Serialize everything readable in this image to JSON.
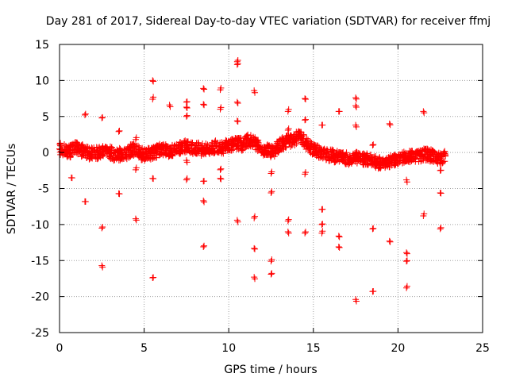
{
  "chart_data": {
    "type": "scatter",
    "title": "Day 281 of 2017, Sidereal Day-to-day VTEC variation (SDTVAR) for receiver ffmj",
    "xlabel": "GPS time / hours",
    "ylabel": "SDTVAR / TECUs",
    "xlim": [
      0,
      25
    ],
    "ylim": [
      -25,
      15
    ],
    "xticks": [
      0,
      5,
      10,
      15,
      20,
      25
    ],
    "yticks": [
      -25,
      -20,
      -15,
      -10,
      -5,
      0,
      5,
      10,
      15
    ],
    "grid": true,
    "marker": "+",
    "series": [
      {
        "name": "SDTVAR",
        "color": "#ff0000",
        "band_points": [
          [
            0.0,
            0.5
          ],
          [
            0.3,
            0.3
          ],
          [
            0.6,
            0.1
          ],
          [
            0.9,
            0.8
          ],
          [
            1.2,
            0.3
          ],
          [
            1.5,
            0.2
          ],
          [
            1.8,
            -0.2
          ],
          [
            2.1,
            0.0
          ],
          [
            2.4,
            -0.1
          ],
          [
            2.7,
            0.3
          ],
          [
            3.0,
            0.0
          ],
          [
            3.3,
            -0.4
          ],
          [
            3.6,
            -0.2
          ],
          [
            3.9,
            -0.3
          ],
          [
            4.2,
            0.3
          ],
          [
            4.5,
            0.5
          ],
          [
            4.8,
            -0.2
          ],
          [
            5.1,
            -0.3
          ],
          [
            5.4,
            -0.1
          ],
          [
            5.7,
            0.1
          ],
          [
            6.0,
            0.6
          ],
          [
            6.3,
            0.3
          ],
          [
            6.6,
            0.2
          ],
          [
            6.9,
            0.6
          ],
          [
            7.2,
            0.7
          ],
          [
            7.5,
            0.9
          ],
          [
            7.8,
            0.6
          ],
          [
            8.1,
            0.7
          ],
          [
            8.4,
            0.4
          ],
          [
            8.7,
            0.4
          ],
          [
            9.0,
            0.6
          ],
          [
            9.3,
            0.9
          ],
          [
            9.6,
            0.6
          ],
          [
            9.9,
            1.0
          ],
          [
            10.2,
            1.1
          ],
          [
            10.5,
            1.3
          ],
          [
            10.8,
            1.1
          ],
          [
            11.1,
            1.7
          ],
          [
            11.4,
            1.5
          ],
          [
            11.7,
            1.1
          ],
          [
            12.0,
            0.4
          ],
          [
            12.3,
            0.5
          ],
          [
            12.6,
            0.0
          ],
          [
            12.9,
            0.8
          ],
          [
            13.2,
            1.3
          ],
          [
            13.5,
            1.6
          ],
          [
            13.8,
            1.5
          ],
          [
            14.1,
            2.3
          ],
          [
            14.4,
            1.8
          ],
          [
            14.7,
            0.9
          ],
          [
            15.0,
            0.4
          ],
          [
            15.3,
            0.1
          ],
          [
            15.6,
            -0.3
          ],
          [
            15.9,
            -0.3
          ],
          [
            16.2,
            -0.5
          ],
          [
            16.5,
            -0.6
          ],
          [
            16.8,
            -0.7
          ],
          [
            17.1,
            -1.0
          ],
          [
            17.4,
            -0.7
          ],
          [
            17.7,
            -0.8
          ],
          [
            18.0,
            -1.0
          ],
          [
            18.3,
            -0.9
          ],
          [
            18.6,
            -1.3
          ],
          [
            18.9,
            -1.5
          ],
          [
            19.2,
            -1.3
          ],
          [
            19.5,
            -1.2
          ],
          [
            19.8,
            -1.0
          ],
          [
            20.1,
            -0.8
          ],
          [
            20.4,
            -0.7
          ],
          [
            20.7,
            -0.6
          ],
          [
            21.0,
            -0.5
          ],
          [
            21.3,
            -0.4
          ],
          [
            21.6,
            -0.3
          ],
          [
            21.9,
            -0.4
          ],
          [
            22.2,
            -0.6
          ],
          [
            22.5,
            -0.8
          ],
          [
            22.8,
            -0.5
          ]
        ],
        "outlier_points": [
          [
            0.7,
            -3.5
          ],
          [
            1.5,
            5.2
          ],
          [
            1.5,
            -6.8
          ],
          [
            2.5,
            4.8
          ],
          [
            2.5,
            -10.5
          ],
          [
            2.5,
            -15.7
          ],
          [
            3.5,
            2.9
          ],
          [
            3.5,
            -5.7
          ],
          [
            4.5,
            1.8
          ],
          [
            4.5,
            -2.4
          ],
          [
            4.5,
            -9.2
          ],
          [
            5.5,
            10.0
          ],
          [
            5.5,
            7.4
          ],
          [
            5.5,
            -3.6
          ],
          [
            5.5,
            -17.4
          ],
          [
            6.5,
            6.6
          ],
          [
            7.5,
            7.0
          ],
          [
            7.5,
            6.3
          ],
          [
            7.5,
            5.0
          ],
          [
            7.5,
            -1.1
          ],
          [
            7.5,
            -3.8
          ],
          [
            8.5,
            8.9
          ],
          [
            8.5,
            6.7
          ],
          [
            8.5,
            -4.0
          ],
          [
            8.5,
            -6.7
          ],
          [
            8.5,
            -13.1
          ],
          [
            9.5,
            8.7
          ],
          [
            9.5,
            6.0
          ],
          [
            9.5,
            -2.4
          ],
          [
            9.5,
            -3.6
          ],
          [
            10.5,
            12.6
          ],
          [
            10.5,
            12.2
          ],
          [
            10.5,
            7.0
          ],
          [
            10.5,
            4.4
          ],
          [
            10.5,
            -9.4
          ],
          [
            11.5,
            8.6
          ],
          [
            11.5,
            -9.1
          ],
          [
            11.5,
            -13.3
          ],
          [
            11.5,
            -17.3
          ],
          [
            12.5,
            -2.9
          ],
          [
            12.5,
            -5.6
          ],
          [
            12.5,
            -15.1
          ],
          [
            12.5,
            -16.9
          ],
          [
            13.5,
            5.7
          ],
          [
            13.5,
            3.1
          ],
          [
            13.5,
            -9.5
          ],
          [
            13.5,
            -11.0
          ],
          [
            14.5,
            7.5
          ],
          [
            14.5,
            4.5
          ],
          [
            14.5,
            -3.0
          ],
          [
            14.5,
            -11.2
          ],
          [
            15.5,
            3.8
          ],
          [
            15.5,
            -7.9
          ],
          [
            15.5,
            -10.0
          ],
          [
            15.5,
            -11.2
          ],
          [
            16.5,
            5.7
          ],
          [
            16.5,
            -11.6
          ],
          [
            16.5,
            -13.1
          ],
          [
            17.5,
            7.6
          ],
          [
            17.5,
            6.5
          ],
          [
            17.5,
            3.8
          ],
          [
            17.5,
            -20.4
          ],
          [
            18.5,
            1.0
          ],
          [
            18.5,
            -10.6
          ],
          [
            18.5,
            -19.3
          ],
          [
            19.5,
            4.0
          ],
          [
            19.5,
            -12.3
          ],
          [
            20.5,
            -3.8
          ],
          [
            20.5,
            -13.9
          ],
          [
            20.5,
            -15.1
          ],
          [
            20.5,
            -18.8
          ],
          [
            21.5,
            5.7
          ],
          [
            21.5,
            -8.8
          ],
          [
            22.5,
            -2.5
          ],
          [
            22.5,
            -5.6
          ],
          [
            22.5,
            -10.6
          ]
        ]
      }
    ]
  }
}
